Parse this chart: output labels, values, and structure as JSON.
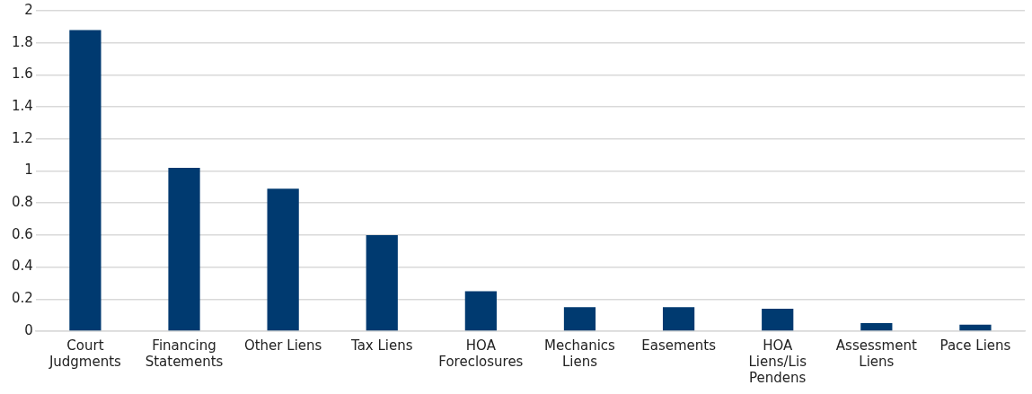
{
  "chart_data": {
    "type": "bar",
    "categories": [
      "Court Judgments",
      "Financing Statements",
      "Other Liens",
      "Tax Liens",
      "HOA Foreclosures",
      "Mechanics Liens",
      "Easements",
      "HOA Liens/Lis Pendens",
      "Assessment Liens",
      "Pace Liens"
    ],
    "values": [
      1.88,
      1.02,
      0.89,
      0.6,
      0.25,
      0.15,
      0.15,
      0.14,
      0.05,
      0.04
    ],
    "color": "#003a70",
    "ylim": [
      0,
      2
    ],
    "yticks": [
      0,
      0.2,
      0.4,
      0.6,
      0.8,
      1,
      1.2,
      1.4,
      1.6,
      1.8,
      2
    ],
    "grid": "y",
    "legend": false
  }
}
